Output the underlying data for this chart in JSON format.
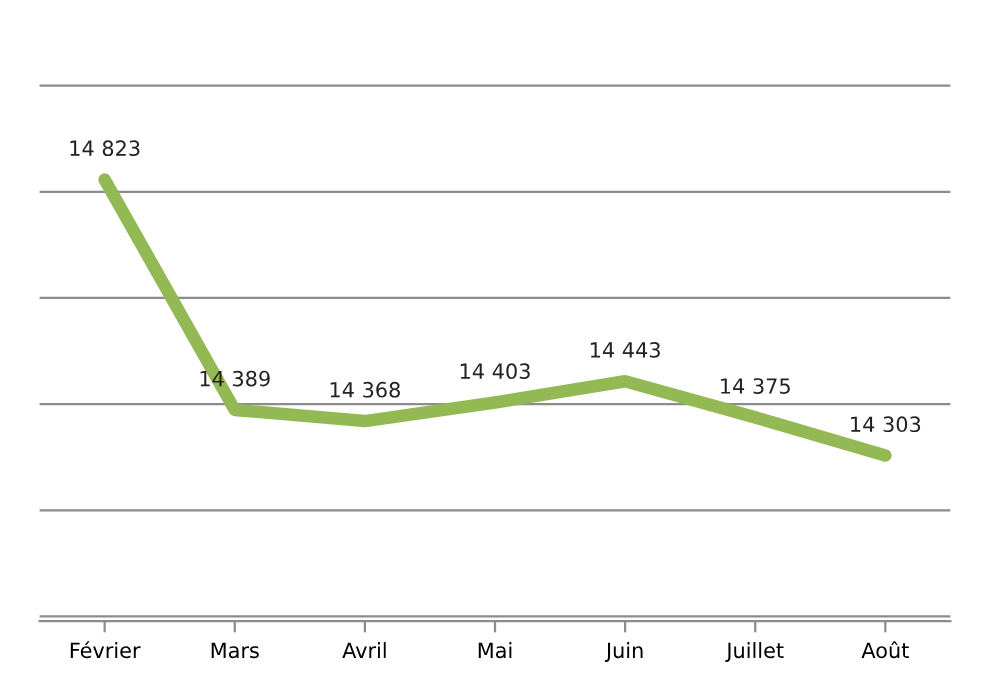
{
  "chart_data": {
    "type": "line",
    "categories": [
      "Février",
      "Mars",
      "Avril",
      "Mai",
      "Juin",
      "Juillet",
      "Août"
    ],
    "series": [
      {
        "color": "#93b954",
        "values": [
          14823,
          14389,
          14368,
          14403,
          14443,
          14375,
          14303
        ],
        "value_labels": [
          "14 823",
          "14 389",
          "14 368",
          "14 403",
          "14 443",
          "14 375",
          "14 303"
        ]
      }
    ],
    "grid": "y",
    "marker": "none",
    "line_style": "solid"
  }
}
